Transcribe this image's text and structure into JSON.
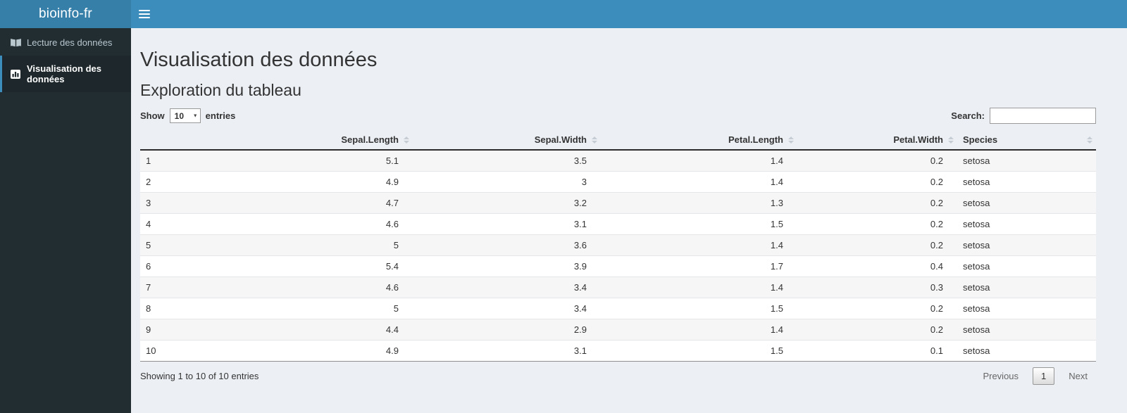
{
  "header": {
    "logo_text": "bioinfo-fr",
    "hamburger_icon": "bars-icon"
  },
  "sidebar": {
    "items": [
      {
        "label": "Lecture des données",
        "icon": "book-open-icon",
        "active": false
      },
      {
        "label": "Visualisation des données",
        "icon": "bar-chart-icon",
        "active": true
      }
    ]
  },
  "main": {
    "page_title": "Visualisation des données",
    "section_title": "Exploration du tableau",
    "length_control": {
      "prefix": "Show",
      "selected": "10",
      "options": [
        "10"
      ],
      "suffix": "entries"
    },
    "search": {
      "label": "Search:",
      "value": "",
      "placeholder": ""
    },
    "table": {
      "columns": [
        {
          "label": "",
          "align": "left",
          "sortable": false
        },
        {
          "label": "Sepal.Length",
          "align": "right",
          "sortable": true
        },
        {
          "label": "Sepal.Width",
          "align": "right",
          "sortable": true
        },
        {
          "label": "Petal.Length",
          "align": "right",
          "sortable": true
        },
        {
          "label": "Petal.Width",
          "align": "right",
          "sortable": true
        },
        {
          "label": "Species",
          "align": "left",
          "sortable": true
        }
      ],
      "rows": [
        [
          "1",
          "5.1",
          "3.5",
          "1.4",
          "0.2",
          "setosa"
        ],
        [
          "2",
          "4.9",
          "3",
          "1.4",
          "0.2",
          "setosa"
        ],
        [
          "3",
          "4.7",
          "3.2",
          "1.3",
          "0.2",
          "setosa"
        ],
        [
          "4",
          "4.6",
          "3.1",
          "1.5",
          "0.2",
          "setosa"
        ],
        [
          "5",
          "5",
          "3.6",
          "1.4",
          "0.2",
          "setosa"
        ],
        [
          "6",
          "5.4",
          "3.9",
          "1.7",
          "0.4",
          "setosa"
        ],
        [
          "7",
          "4.6",
          "3.4",
          "1.4",
          "0.3",
          "setosa"
        ],
        [
          "8",
          "5",
          "3.4",
          "1.5",
          "0.2",
          "setosa"
        ],
        [
          "9",
          "4.4",
          "2.9",
          "1.4",
          "0.2",
          "setosa"
        ],
        [
          "10",
          "4.9",
          "3.1",
          "1.5",
          "0.1",
          "setosa"
        ]
      ]
    },
    "info_text": "Showing 1 to 10 of 10 entries",
    "pagination": {
      "previous": "Previous",
      "pages": [
        "1"
      ],
      "current": "1",
      "next": "Next"
    }
  },
  "colors": {
    "navbar": "#3c8dbc",
    "logo_bg": "#367fa9",
    "sidebar_bg": "#222d32",
    "sidebar_active_bg": "#1e282c",
    "content_bg": "#ecf0f5",
    "accent": "#3c8dbc"
  }
}
